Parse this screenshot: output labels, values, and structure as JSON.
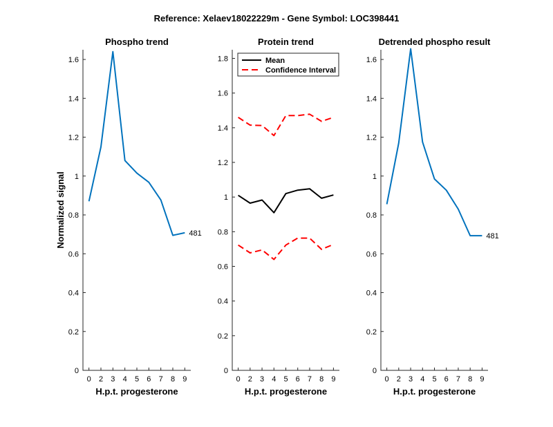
{
  "figure": {
    "title": "Reference:  Xelaev18022229m - Gene Symbol:  LOC398441"
  },
  "chart_data": [
    {
      "type": "line",
      "title": "Phospho trend",
      "xlabel": "H.p.t. progesterone",
      "ylabel": "Normalized signal",
      "x_tick_labels": [
        "0",
        "2",
        "3",
        "4",
        "5",
        "6",
        "7",
        "8",
        "9"
      ],
      "xlim": [
        0.5,
        9.5
      ],
      "ylim": [
        0,
        1.65
      ],
      "y_ticks": [
        0,
        0.2,
        0.4,
        0.6,
        0.8,
        1,
        1.2,
        1.4,
        1.6
      ],
      "series": [
        {
          "values": [
            0.87,
            1.15,
            1.64,
            1.08,
            1.015,
            0.968,
            0.877,
            0.695,
            0.708
          ],
          "color": "#0072BD",
          "dashed": false
        }
      ],
      "end_label": "481"
    },
    {
      "type": "line",
      "title": "Protein trend",
      "xlabel": "H.p.t. progesterone",
      "ylabel": "",
      "x_tick_labels": [
        "0",
        "2",
        "3",
        "4",
        "5",
        "6",
        "7",
        "8",
        "9"
      ],
      "xlim": [
        0.5,
        9.5
      ],
      "ylim": [
        0,
        1.85
      ],
      "y_ticks": [
        0,
        0.2,
        0.4,
        0.6,
        0.8,
        1,
        1.2,
        1.4,
        1.6,
        1.8
      ],
      "series": [
        {
          "name": "Mean",
          "values": [
            1.01,
            0.965,
            0.983,
            0.91,
            1.02,
            1.04,
            1.048,
            0.993,
            1.012
          ],
          "color": "#000000",
          "dashed": false
        },
        {
          "name": "Confidence Interval",
          "values": [
            1.46,
            1.415,
            1.413,
            1.355,
            1.47,
            1.47,
            1.478,
            1.437,
            1.46
          ],
          "color": "#FF0000",
          "dashed": true
        },
        {
          "values": [
            0.723,
            0.678,
            0.695,
            0.64,
            0.723,
            0.763,
            0.763,
            0.698,
            0.727
          ],
          "color": "#FF0000",
          "dashed": true
        }
      ],
      "legend": {
        "placement": "top-left",
        "entries": [
          {
            "label": "Mean",
            "color": "#000000",
            "dashed": false
          },
          {
            "label": "Confidence Interval",
            "color": "#FF0000",
            "dashed": true
          }
        ]
      }
    },
    {
      "type": "line",
      "title": "Detrended phospho result",
      "xlabel": "H.p.t. progesterone",
      "ylabel": "",
      "x_tick_labels": [
        "0",
        "2",
        "3",
        "4",
        "5",
        "6",
        "7",
        "8",
        "9"
      ],
      "xlim": [
        0.5,
        9.5
      ],
      "ylim": [
        0,
        1.65
      ],
      "y_ticks": [
        0,
        0.2,
        0.4,
        0.6,
        0.8,
        1,
        1.2,
        1.4,
        1.6
      ],
      "series": [
        {
          "values": [
            0.855,
            1.17,
            1.655,
            1.175,
            0.985,
            0.927,
            0.83,
            0.693,
            0.693
          ],
          "color": "#0072BD",
          "dashed": false
        }
      ],
      "end_label": "481"
    }
  ]
}
